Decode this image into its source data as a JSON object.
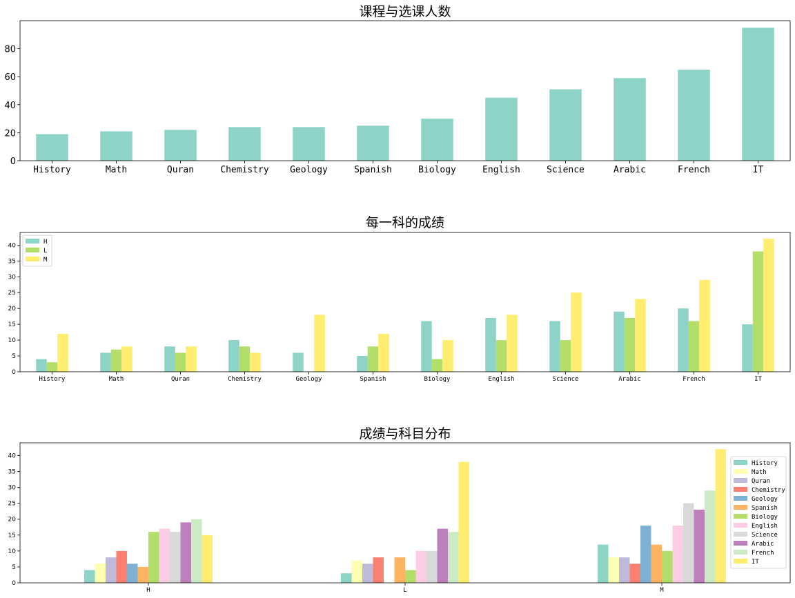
{
  "chart_data": [
    {
      "type": "bar",
      "title": "课程与选课人数",
      "categories": [
        "History",
        "Math",
        "Quran",
        "Chemistry",
        "Geology",
        "Spanish",
        "Biology",
        "English",
        "Science",
        "Arabic",
        "French",
        "IT"
      ],
      "values": [
        19,
        21,
        22,
        24,
        24,
        25,
        30,
        45,
        51,
        59,
        65,
        95
      ],
      "color": "#8dd3c7",
      "ylim": [
        0,
        100
      ],
      "yticks": [
        0,
        20,
        40,
        60,
        80
      ],
      "xlabel": "",
      "ylabel": ""
    },
    {
      "type": "bar",
      "title": "每一科的成绩",
      "categories": [
        "History",
        "Math",
        "Quran",
        "Chemistry",
        "Geology",
        "Spanish",
        "Biology",
        "English",
        "Science",
        "Arabic",
        "French",
        "IT"
      ],
      "series": [
        {
          "name": "H",
          "color": "#8dd3c7",
          "values": [
            4,
            6,
            8,
            10,
            6,
            5,
            16,
            17,
            16,
            19,
            20,
            15
          ]
        },
        {
          "name": "L",
          "color": "#b3de69",
          "values": [
            3,
            7,
            6,
            8,
            0,
            8,
            4,
            10,
            10,
            17,
            16,
            38
          ]
        },
        {
          "name": "M",
          "color": "#ffed6f",
          "values": [
            12,
            8,
            8,
            6,
            18,
            12,
            10,
            18,
            25,
            23,
            29,
            42
          ]
        }
      ],
      "ylim": [
        0,
        44
      ],
      "yticks": [
        0,
        5,
        10,
        15,
        20,
        25,
        30,
        35,
        40
      ],
      "legend": "top-left",
      "xlabel": "",
      "ylabel": ""
    },
    {
      "type": "bar",
      "title": "成绩与科目分布",
      "categories": [
        "H",
        "L",
        "M"
      ],
      "series": [
        {
          "name": "History",
          "color": "#8dd3c7",
          "values": [
            4,
            3,
            12
          ]
        },
        {
          "name": "Math",
          "color": "#ffffb3",
          "values": [
            6,
            7,
            8
          ]
        },
        {
          "name": "Quran",
          "color": "#bebada",
          "values": [
            8,
            6,
            8
          ]
        },
        {
          "name": "Chemistry",
          "color": "#fb8072",
          "values": [
            10,
            8,
            6
          ]
        },
        {
          "name": "Geology",
          "color": "#80b1d3",
          "values": [
            6,
            0,
            18
          ]
        },
        {
          "name": "Spanish",
          "color": "#fdb462",
          "values": [
            5,
            8,
            12
          ]
        },
        {
          "name": "Biology",
          "color": "#b3de69",
          "values": [
            16,
            4,
            10
          ]
        },
        {
          "name": "English",
          "color": "#fccde5",
          "values": [
            17,
            10,
            18
          ]
        },
        {
          "name": "Science",
          "color": "#d9d9d9",
          "values": [
            16,
            10,
            25
          ]
        },
        {
          "name": "Arabic",
          "color": "#bc80bd",
          "values": [
            19,
            17,
            23
          ]
        },
        {
          "name": "French",
          "color": "#ccebc5",
          "values": [
            20,
            16,
            29
          ]
        },
        {
          "name": "IT",
          "color": "#ffed6f",
          "values": [
            15,
            38,
            42
          ]
        }
      ],
      "ylim": [
        0,
        44
      ],
      "yticks": [
        0,
        5,
        10,
        15,
        20,
        25,
        30,
        35,
        40
      ],
      "legend": "right",
      "xlabel": "",
      "ylabel": ""
    }
  ]
}
